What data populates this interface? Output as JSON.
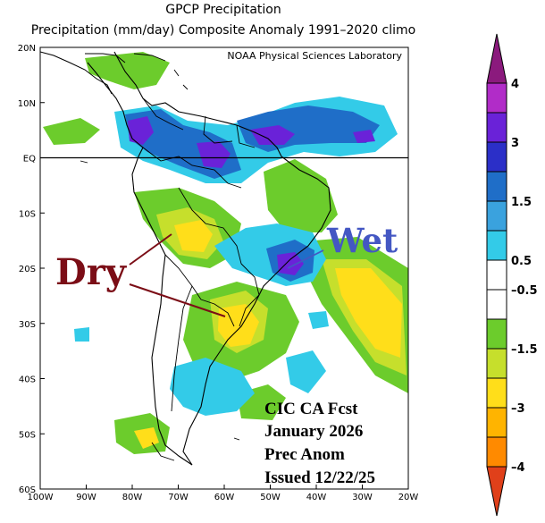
{
  "title": {
    "line1": "GPCP Precipitation",
    "line2": "Precipitation (mm/day) Composite Anomaly 1991–2020 climo"
  },
  "map": {
    "credit": "NOAA Physical Sciences Laboratory",
    "lat_ticks": [
      {
        "value": 20,
        "label": "20N"
      },
      {
        "value": 10,
        "label": "10N"
      },
      {
        "value": 0,
        "label": "EQ"
      },
      {
        "value": -10,
        "label": "10S"
      },
      {
        "value": -20,
        "label": "20S"
      },
      {
        "value": -30,
        "label": "30S"
      },
      {
        "value": -40,
        "label": "40S"
      },
      {
        "value": -50,
        "label": "50S"
      },
      {
        "value": -60,
        "label": "60S"
      }
    ],
    "lon_ticks": [
      {
        "value": -100,
        "label": "100W"
      },
      {
        "value": -90,
        "label": "90W"
      },
      {
        "value": -80,
        "label": "80W"
      },
      {
        "value": -70,
        "label": "70W"
      },
      {
        "value": -60,
        "label": "60W"
      },
      {
        "value": -50,
        "label": "50W"
      },
      {
        "value": -40,
        "label": "40W"
      },
      {
        "value": -30,
        "label": "30W"
      },
      {
        "value": -20,
        "label": "20W"
      }
    ],
    "lon_range": [
      -100,
      -20
    ],
    "lat_range": [
      -60,
      20
    ],
    "equator_line": true
  },
  "annotations": {
    "dry_label": "Dry",
    "wet_label": "Wet",
    "forecast": {
      "line1": "CIC CA Fcst",
      "line2": "January 2026",
      "line3": "Prec Anom",
      "line4": "Issued 12/22/25"
    },
    "colors": {
      "dry": "#7b0d16",
      "wet": "#4457c3"
    }
  },
  "colorbar": {
    "labels": [
      "4",
      "3",
      "1.5",
      "0.5",
      "–0.5",
      "–1.5",
      "–3",
      "–4"
    ],
    "colors": [
      "#8b1a7d",
      "#b12cc8",
      "#6a22d8",
      "#2b2fc8",
      "#1f6ec8",
      "#3aa2de",
      "#33cbe8",
      "#ffffff",
      "#ffffff",
      "#6ccc2c",
      "#c6df2c",
      "#ffde1a",
      "#ffb400",
      "#ff8a00",
      "#e0401a"
    ]
  }
}
